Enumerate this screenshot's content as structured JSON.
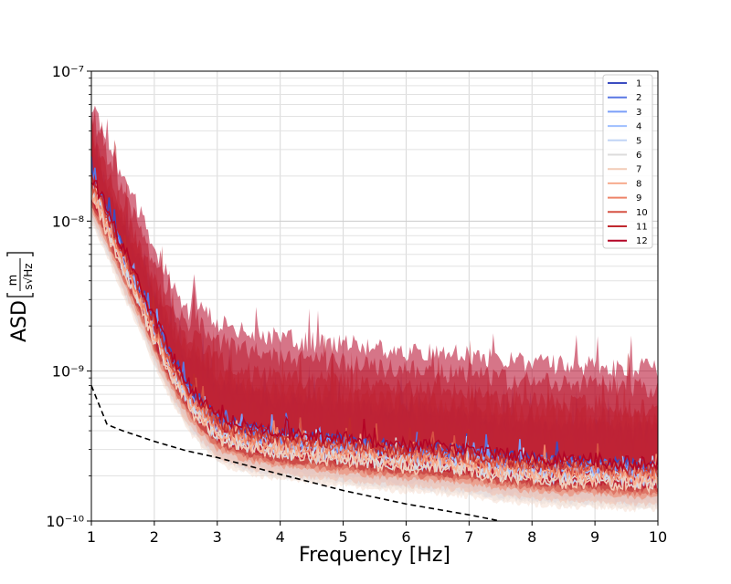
{
  "chart_data": {
    "type": "line",
    "xlabel": "Frequency [Hz]",
    "ylabel": "ASD",
    "ylabel_unit": "m / (s√Hz)",
    "x_ticks": [
      1,
      2,
      3,
      4,
      5,
      6,
      7,
      8,
      9,
      10
    ],
    "x_tick_labels": [
      "1",
      "2",
      "3",
      "4",
      "5",
      "6",
      "7",
      "8",
      "9",
      "10"
    ],
    "y_scale": "log",
    "y_tick_labels": [
      "10⁻¹⁰",
      "10⁻⁹",
      "10⁻⁸",
      "10⁻⁷"
    ],
    "xlim": [
      1,
      10
    ],
    "ylim": [
      1e-10,
      1e-07
    ],
    "grid": true,
    "legend_position": "top-right",
    "series": [
      {
        "name": "1",
        "color": "#3b4cc0",
        "scale": 1.08,
        "env_lo": 0.72,
        "env_hi": 1.6
      },
      {
        "name": "2",
        "color": "#5977e3",
        "scale": 1.04,
        "env_lo": 0.72,
        "env_hi": 1.7
      },
      {
        "name": "3",
        "color": "#7b9ff9",
        "scale": 1.0,
        "env_lo": 0.7,
        "env_hi": 1.6
      },
      {
        "name": "4",
        "color": "#9ebeff",
        "scale": 0.92,
        "env_lo": 0.7,
        "env_hi": 1.6
      },
      {
        "name": "5",
        "color": "#c0d4f5",
        "scale": 0.86,
        "env_lo": 0.7,
        "env_hi": 1.6
      },
      {
        "name": "6",
        "color": "#dddcdc",
        "scale": 0.83,
        "env_lo": 0.7,
        "env_hi": 1.7
      },
      {
        "name": "7",
        "color": "#f2cbb7",
        "scale": 0.8,
        "env_lo": 0.7,
        "env_hi": 1.8
      },
      {
        "name": "8",
        "color": "#f7ac8e",
        "scale": 0.88,
        "env_lo": 0.7,
        "env_hi": 2.0
      },
      {
        "name": "9",
        "color": "#ee8468",
        "scale": 0.95,
        "env_lo": 0.72,
        "env_hi": 2.2
      },
      {
        "name": "10",
        "color": "#d65244",
        "scale": 1.0,
        "env_lo": 0.72,
        "env_hi": 2.5
      },
      {
        "name": "11",
        "color": "#c0282f",
        "scale": 1.05,
        "env_lo": 0.72,
        "env_hi": 3.2
      },
      {
        "name": "12",
        "color": "#b40426",
        "scale": 1.12,
        "env_lo": 0.72,
        "env_hi": 4.0
      }
    ],
    "median_curve": {
      "x": [
        1.0,
        1.2,
        1.5,
        1.8,
        2.0,
        2.3,
        2.6,
        3.0,
        3.5,
        4.0,
        4.5,
        5.0,
        5.5,
        6.0,
        6.5,
        7.0,
        7.5,
        8.0,
        8.5,
        9.0,
        9.5,
        10.0
      ],
      "y": [
        1.8e-08,
        1.2e-08,
        6e-09,
        3.2e-09,
        2e-09,
        1.1e-09,
        6.8e-10,
        4.5e-10,
        3.8e-10,
        3.5e-10,
        3.3e-10,
        3.2e-10,
        3e-10,
        2.9e-10,
        2.8e-10,
        2.7e-10,
        2.5e-10,
        2.4e-10,
        2.3e-10,
        2.3e-10,
        2.2e-10,
        2.2e-10
      ]
    },
    "reference_curve": {
      "style": "dashed",
      "color": "#000000",
      "x": [
        1.0,
        1.25,
        1.5,
        2.0,
        2.5,
        3.0,
        4.0,
        5.0,
        6.0,
        7.0,
        7.5
      ],
      "y": [
        8e-10,
        4.4e-10,
        4e-10,
        3.4e-10,
        2.95e-10,
        2.65e-10,
        2.05e-10,
        1.6e-10,
        1.3e-10,
        1.1e-10,
        1e-10
      ]
    }
  }
}
